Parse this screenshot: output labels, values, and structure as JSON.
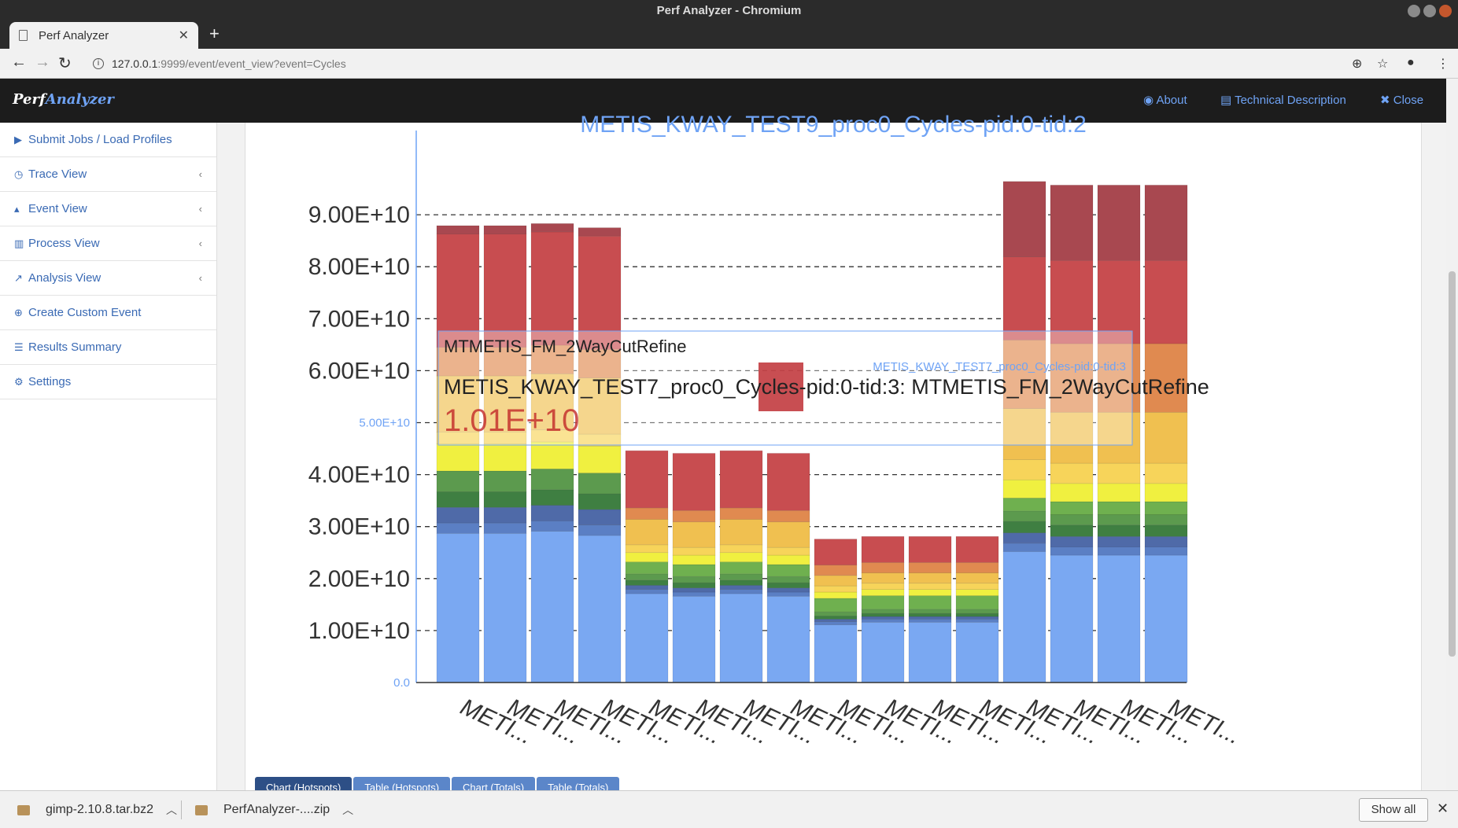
{
  "window": {
    "title": "Perf Analyzer - Chromium"
  },
  "browser": {
    "tab_title": "Perf Analyzer",
    "new_tab": "+",
    "url_host": "127.0.0.1",
    "url_rest": ":9999/event/event_view?event=Cycles"
  },
  "header": {
    "brand_a": "Perf",
    "brand_b": "Analyzer",
    "about": "About",
    "tech": "Technical Description",
    "close": "Close"
  },
  "sidebar": {
    "items": [
      {
        "label": "Submit Jobs / Load Profiles",
        "icon": "play-icon",
        "glyph": "▶",
        "chevron": false
      },
      {
        "label": "Trace View",
        "icon": "clock-icon",
        "glyph": "◷",
        "chevron": true
      },
      {
        "label": "Event View",
        "icon": "area-chart-icon",
        "glyph": "▴",
        "chevron": true
      },
      {
        "label": "Process View",
        "icon": "bar-chart-icon",
        "glyph": "▥",
        "chevron": true
      },
      {
        "label": "Analysis View",
        "icon": "line-chart-icon",
        "glyph": "↗",
        "chevron": true
      },
      {
        "label": "Create Custom Event",
        "icon": "plus-circle-icon",
        "glyph": "⊕",
        "chevron": false
      },
      {
        "label": "Results Summary",
        "icon": "list-icon",
        "glyph": "☰",
        "chevron": false
      },
      {
        "label": "Settings",
        "icon": "gear-icon",
        "glyph": "⚙",
        "chevron": false
      }
    ]
  },
  "chart_data": {
    "type": "bar",
    "stacked": true,
    "title": "METIS_KWAY_TEST9_proc0_Cycles-pid:0-tid:2",
    "ylim": [
      0,
      100000000000
    ],
    "y_ticks": [
      "0.0",
      "1.00E+10",
      "2.00E+10",
      "3.00E+10",
      "4.00E+10",
      "5.00E+10",
      "6.00E+10",
      "7.00E+10",
      "8.00E+10",
      "9.00E+10"
    ],
    "categories": [
      "METI...",
      "METI...",
      "METI...",
      "METI...",
      "METI...",
      "METI...",
      "METI...",
      "METI...",
      "METI...",
      "METI...",
      "METI...",
      "METI...",
      "METI...",
      "METI...",
      "METI...",
      "METI..."
    ],
    "segment_colors": [
      "#7aa8f2",
      "#5b7fc4",
      "#4f6aa8",
      "#3f7f42",
      "#5c9a4e",
      "#6fb04f",
      "#8fd94f",
      "#f0f040",
      "#f7d45a",
      "#f0c050",
      "#e8b255",
      "#e08a50",
      "#c84d50",
      "#a84850"
    ],
    "series": [
      {
        "values": [
          28.7,
          28.7,
          29.1,
          28.3,
          17.1,
          16.6,
          17.1,
          16.6,
          11.1,
          11.6,
          11.6,
          11.6,
          25.2,
          24.5,
          24.5,
          24.5
        ]
      },
      {
        "values": [
          2.0,
          2.0,
          2.0,
          2.0,
          0.8,
          0.8,
          0.8,
          0.8,
          0.6,
          0.6,
          0.6,
          0.6,
          1.6,
          1.6,
          1.6,
          1.6
        ]
      },
      {
        "values": [
          3.0,
          3.0,
          3.0,
          3.0,
          0.8,
          0.8,
          0.8,
          0.8,
          0.5,
          0.5,
          0.5,
          0.5,
          2.0,
          2.0,
          2.0,
          2.0
        ]
      },
      {
        "values": [
          3.0,
          3.0,
          3.0,
          3.0,
          1.0,
          1.0,
          1.0,
          1.0,
          0.6,
          0.6,
          0.6,
          0.6,
          2.2,
          2.2,
          2.2,
          2.2
        ]
      },
      {
        "values": [
          4.0,
          4.0,
          4.0,
          4.0,
          1.2,
          1.2,
          1.2,
          1.2,
          0.8,
          0.8,
          0.8,
          0.8,
          2.0,
          2.0,
          2.0,
          2.0
        ]
      },
      {
        "values": [
          0,
          0,
          0,
          0,
          2.3,
          2.3,
          2.3,
          2.3,
          2.6,
          2.6,
          2.6,
          2.6,
          2.5,
          2.5,
          2.5,
          2.5
        ]
      },
      {
        "values": [
          0,
          0,
          0,
          0,
          0,
          0,
          0,
          0,
          0,
          0,
          0,
          0,
          0,
          0,
          0,
          0
        ]
      },
      {
        "values": [
          5.2,
          5.2,
          5.2,
          5.2,
          1.8,
          1.8,
          1.8,
          1.8,
          1.2,
          1.2,
          1.2,
          1.2,
          3.5,
          3.5,
          3.5,
          3.5
        ]
      },
      {
        "values": [
          2.3,
          2.3,
          2.3,
          2.3,
          1.5,
          1.5,
          1.5,
          1.5,
          1.2,
          1.2,
          1.2,
          1.2,
          3.9,
          3.9,
          3.9,
          3.9
        ]
      },
      {
        "values": [
          10.8,
          10.8,
          10.8,
          10.8,
          4.9,
          4.9,
          4.9,
          4.9,
          2.0,
          2.0,
          2.0,
          2.0,
          9.8,
          9.8,
          9.8,
          9.8
        ]
      },
      {
        "values": [
          0,
          0,
          0,
          0,
          0,
          0,
          0,
          0,
          0,
          0,
          0,
          0,
          0,
          0,
          0,
          0
        ]
      },
      {
        "values": [
          5.5,
          5.5,
          5.5,
          5.5,
          2.2,
          2.2,
          2.2,
          2.2,
          2.0,
          2.0,
          2.0,
          2.0,
          13.2,
          13.2,
          13.2,
          13.2
        ]
      },
      {
        "values": [
          21.8,
          21.8,
          21.8,
          21.8,
          11.0,
          11.0,
          11.0,
          11.0,
          5.0,
          5.0,
          5.0,
          5.0,
          16.0,
          16.0,
          16.0,
          16.0
        ]
      },
      {
        "values": [
          1.6,
          1.6,
          1.6,
          1.6,
          0,
          0,
          0,
          0,
          0,
          0,
          0,
          0,
          14.5,
          14.5,
          14.5,
          14.5
        ]
      }
    ],
    "grid": true
  },
  "tooltip": {
    "series": "METIS_KWAY_TEST7_proc0_Cycles-pid:0-tid:3",
    "function": "MTMETIS_FM_2WayCutRefine",
    "full_label": "METIS_KWAY_TEST7_proc0_Cycles-pid:0-tid:3: MTMETIS_FM_2WayCutRefine",
    "value": "1.01E+10",
    "axis_value": "5.00E+10"
  },
  "bottom_tabs": [
    "Chart (Hotspots)",
    "Table (Hotspots)",
    "Chart (Totals)",
    "Table (Totals)"
  ],
  "downloads": {
    "items": [
      "gimp-2.10.8.tar.bz2",
      "PerfAnalyzer-....zip"
    ],
    "show_all": "Show all"
  }
}
